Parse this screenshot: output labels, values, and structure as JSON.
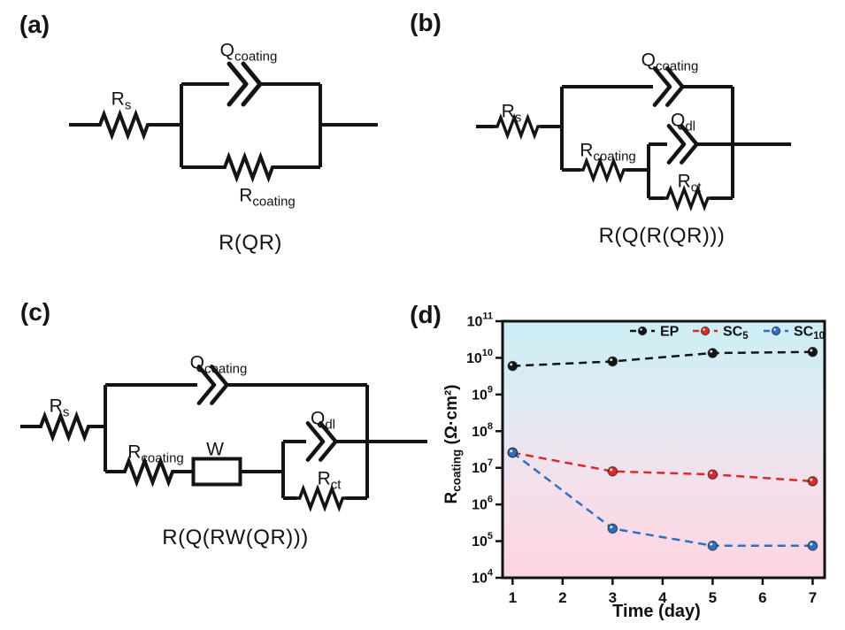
{
  "circuits": {
    "a": {
      "tag": "(a)",
      "title": "R(QR)",
      "labels": {
        "rs": {
          "main": "R",
          "sub": "s"
        },
        "q_coating": {
          "main": "Q",
          "sub": "coating"
        },
        "r_coating": {
          "main": "R",
          "sub": "coating"
        }
      }
    },
    "b": {
      "tag": "(b)",
      "title": "R(Q(R(QR)))",
      "labels": {
        "rs": {
          "main": "R",
          "sub": "s"
        },
        "q_coating": {
          "main": "Q",
          "sub": "coating"
        },
        "r_coating": {
          "main": "R",
          "sub": "coating"
        },
        "q_dl": {
          "main": "Q",
          "sub": "dl"
        },
        "r_ct": {
          "main": "R",
          "sub": "ct"
        }
      }
    },
    "c": {
      "tag": "(c)",
      "title": "R(Q(RW(QR)))",
      "labels": {
        "rs": {
          "main": "R",
          "sub": "s"
        },
        "q_coating": {
          "main": "Q",
          "sub": "coating"
        },
        "r_coating": {
          "main": "R",
          "sub": "coating"
        },
        "w": {
          "main": "W",
          "sub": ""
        },
        "q_dl": {
          "main": "Q",
          "sub": "dl"
        },
        "r_ct": {
          "main": "R",
          "sub": "ct"
        }
      }
    },
    "d": {
      "tag": "(d)"
    }
  },
  "chart_data": {
    "type": "line",
    "title": "",
    "xlabel": "Time (day)",
    "ylabel": "R_coating (Ω·cm²)",
    "ylabel_parts": {
      "main": "R",
      "sub": "coating",
      "units": " (Ω·cm²)"
    },
    "x_scale": "linear",
    "y_scale": "log",
    "xlim": [
      0.8,
      7.24
    ],
    "x_ticks": [
      1,
      2,
      3,
      4,
      5,
      6,
      7
    ],
    "y_exponent_range": [
      4,
      11
    ],
    "grid": false,
    "legend_position": "top-inside",
    "line_style": "dashed",
    "x": [
      1,
      3,
      5,
      7
    ],
    "series": [
      {
        "name": "EP",
        "label_main": "EP",
        "label_sub": "",
        "color": "#141414",
        "marker": "circle",
        "values": [
          6000000000.0,
          8000000000.0,
          13500000000.0,
          14500000000.0
        ]
      },
      {
        "name": "SC5",
        "label_main": "SC",
        "label_sub": "5",
        "color": "#d92b2b",
        "marker": "circle",
        "values": [
          26000000.0,
          8000000.0,
          6600000.0,
          4300000.0
        ]
      },
      {
        "name": "SC10",
        "label_main": "SC",
        "label_sub": "10",
        "color": "#2f6fc1",
        "marker": "circle",
        "values": [
          26000000.0,
          220000.0,
          75000.0,
          75000.0
        ]
      }
    ],
    "background_gradient": [
      {
        "offset": 0,
        "color": "#cdedf5"
      },
      {
        "offset": 0.3,
        "color": "#ddecf3"
      },
      {
        "offset": 0.55,
        "color": "#efe3ed"
      },
      {
        "offset": 0.8,
        "color": "#f9dbe7"
      },
      {
        "offset": 1,
        "color": "#fcd4e1"
      }
    ]
  }
}
